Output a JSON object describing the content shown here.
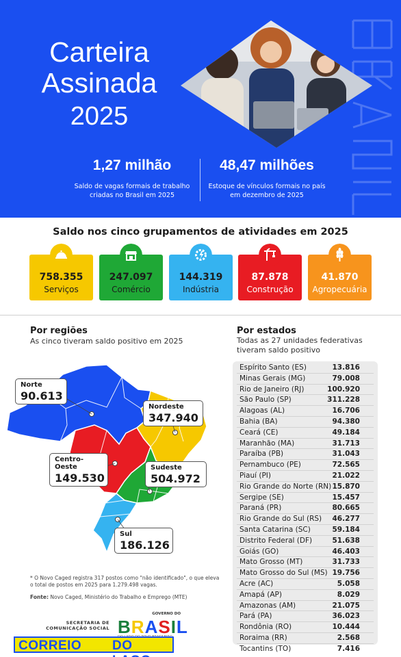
{
  "header": {
    "title_line1": "Carteira",
    "title_line2": "Assinada",
    "year": "2025",
    "stat1_value": "1,27 milhão",
    "stat1_desc": "Saldo de vagas formais de trabalho criadas no Brasil em 2025",
    "stat2_value": "48,47 milhões",
    "stat2_desc": "Estoque de vínculos formais no país em dezembro de 2025"
  },
  "sectors": {
    "title": "Saldo nos cinco grupamentos de atividades em 2025",
    "items": [
      {
        "value": "758.355",
        "label": "Serviços",
        "color": "#f6c800",
        "text_color": "#1c1c1c",
        "icon": "service-bell-icon"
      },
      {
        "value": "247.097",
        "label": "Comércio",
        "color": "#1fa836",
        "text_color": "#1c1c1c",
        "icon": "storefront-icon"
      },
      {
        "value": "144.319",
        "label": "Indústria",
        "color": "#35b3f0",
        "text_color": "#1c1c1c",
        "icon": "gear-bolt-icon"
      },
      {
        "value": "87.878",
        "label": "Construção",
        "color": "#e81c23",
        "text_color": "#ffffff",
        "icon": "crane-icon"
      },
      {
        "value": "41.870",
        "label": "Agropecuária",
        "color": "#f7941d",
        "text_color": "#ffffff",
        "icon": "wheat-icon"
      }
    ]
  },
  "regions": {
    "title": "Por regiões",
    "subtitle": "As cinco tiveram saldo positivo em 2025",
    "items": [
      {
        "name": "Norte",
        "value": "90.613",
        "color": "#1a4ff0"
      },
      {
        "name": "Nordeste",
        "value": "347.940",
        "color": "#f6c800"
      },
      {
        "name": "Centro-Oeste",
        "value": "149.530",
        "color": "#e81c23"
      },
      {
        "name": "Sudeste",
        "value": "504.972",
        "color": "#1fa836"
      },
      {
        "name": "Sul",
        "value": "186.126",
        "color": "#35b3f0"
      }
    ],
    "note": "* O Novo Caged registra 317 postos como \"não identificado\", o que eleva o total de postos em 2025 para 1.279.498 vagas.",
    "source_label": "Fonte:",
    "source_text": "Novo Caged, Ministério do Trabalho e Emprego (MTE)"
  },
  "states": {
    "title": "Por estados",
    "subtitle": "Todas as 27 unidades federativas tiveram saldo positivo",
    "items": [
      {
        "name": "Espírito Santo (ES)",
        "value": "13.816"
      },
      {
        "name": "Minas Gerais (MG)",
        "value": "79.008"
      },
      {
        "name": "Rio de Janeiro (RJ)",
        "value": "100.920"
      },
      {
        "name": "São Paulo (SP)",
        "value": "311.228"
      },
      {
        "name": "Alagoas (AL)",
        "value": "16.706"
      },
      {
        "name": "Bahia (BA)",
        "value": "94.380"
      },
      {
        "name": "Ceará (CE)",
        "value": "49.184"
      },
      {
        "name": "Maranhão (MA)",
        "value": "31.713"
      },
      {
        "name": "Paraíba (PB)",
        "value": "31.043"
      },
      {
        "name": "Pernambuco (PE)",
        "value": "72.565"
      },
      {
        "name": "Piauí (PI)",
        "value": "21.022"
      },
      {
        "name": "Rio Grande do Norte (RN)",
        "value": "15.870"
      },
      {
        "name": "Sergipe (SE)",
        "value": "15.457"
      },
      {
        "name": "Paraná (PR)",
        "value": "80.665"
      },
      {
        "name": "Rio Grande do Sul (RS)",
        "value": "46.277"
      },
      {
        "name": "Santa Catarina (SC)",
        "value": "59.184"
      },
      {
        "name": "Distrito Federal (DF)",
        "value": "51.638"
      },
      {
        "name": "Goiás (GO)",
        "value": "46.403"
      },
      {
        "name": "Mato Grosso (MT)",
        "value": "31.733"
      },
      {
        "name": "Mato Grosso do Sul (MS)",
        "value": "19.756"
      },
      {
        "name": "Acre (AC)",
        "value": "5.058"
      },
      {
        "name": "Amapá (AP)",
        "value": "8.029"
      },
      {
        "name": "Amazonas (AM)",
        "value": "21.075"
      },
      {
        "name": "Pará (PA)",
        "value": "36.023"
      },
      {
        "name": "Rondônia (RO)",
        "value": "10.444"
      },
      {
        "name": "Roraima (RR)",
        "value": "2.568"
      },
      {
        "name": "Tocantins (TO)",
        "value": "7.416"
      }
    ]
  },
  "footer": {
    "secom_line1": "SECRETARIA DE",
    "secom_line2": "COMUNICAÇÃO SOCIAL",
    "gov_top": "GOVERNO DO",
    "gov_letters": [
      "B",
      "R",
      "A",
      "S",
      "I",
      "L"
    ],
    "gov_tagline": "DO LADO DO POVO BRASILEIRO",
    "banner_word1": "CORREIO",
    "banner_word2": "DO LAGO"
  }
}
